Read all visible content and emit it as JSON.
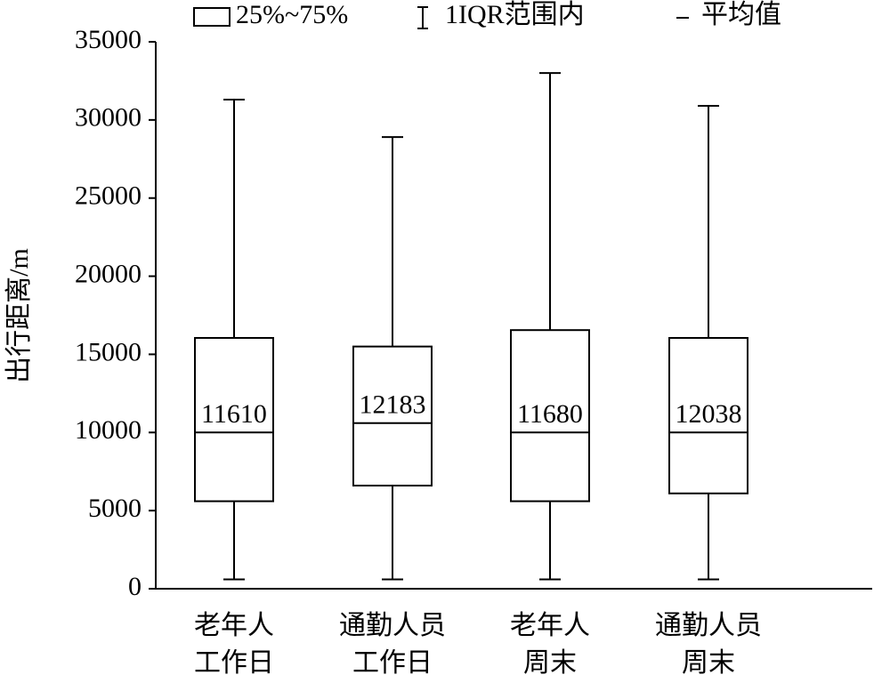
{
  "chart_data": {
    "type": "box",
    "categories": [
      [
        "老年人",
        "工作日"
      ],
      [
        "通勤人员",
        "工作日"
      ],
      [
        "老年人",
        "周末"
      ],
      [
        "通勤人员",
        "周末"
      ]
    ],
    "whisker_low": [
      600,
      600,
      600,
      600
    ],
    "q1": [
      5600,
      6600,
      5600,
      6100
    ],
    "median": [
      10000,
      10600,
      10000,
      10000
    ],
    "q3": [
      16050,
      15500,
      16550,
      16050
    ],
    "whisker_high": [
      31300,
      28900,
      33000,
      30900
    ],
    "mean": [
      11610,
      12183,
      11680,
      12038
    ],
    "ylabel": "出行距离/m",
    "ylim": [
      0,
      35000
    ],
    "yticks": [
      0,
      5000,
      10000,
      15000,
      20000,
      25000,
      30000,
      35000
    ],
    "legend": {
      "box": "25%~75%",
      "whisker": "1IQR范围内",
      "mean": "平均值"
    },
    "color": "#000000"
  }
}
